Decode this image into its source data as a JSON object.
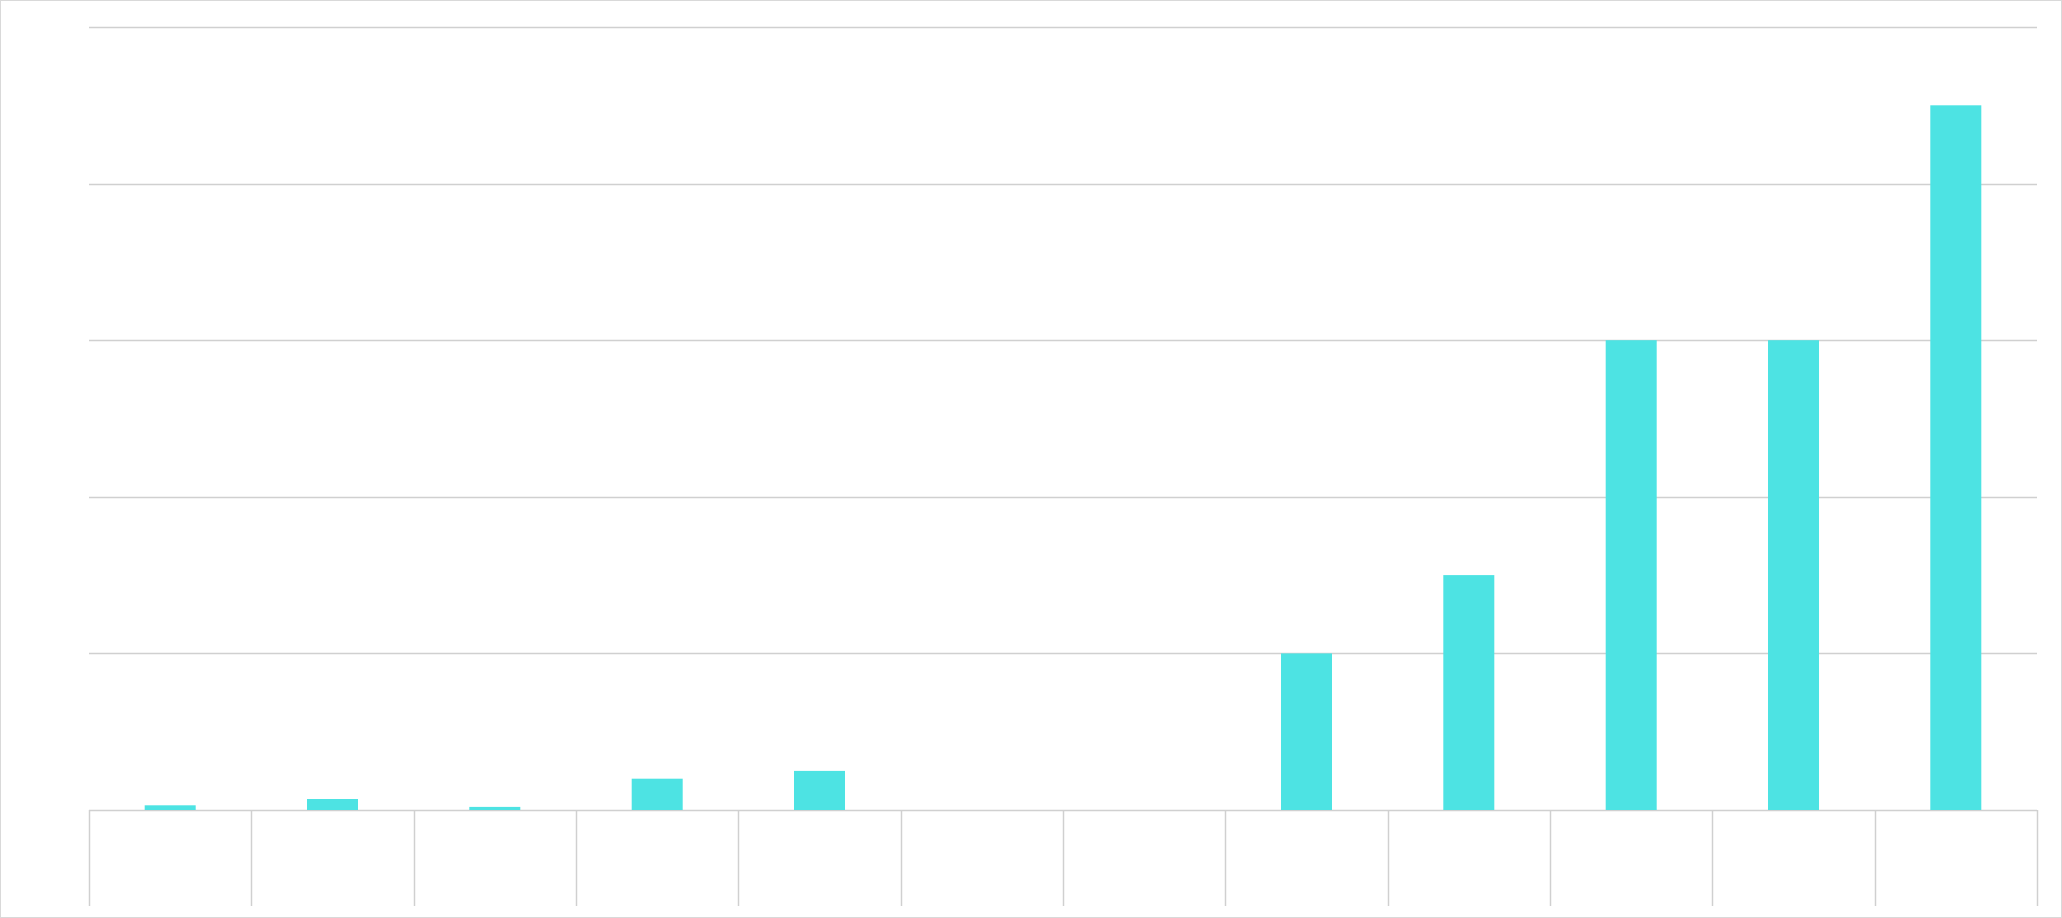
{
  "chart_data": {
    "type": "bar",
    "categories": [
      "",
      "",
      "",
      "",
      "",
      "",
      "",
      "",
      "",
      "",
      "",
      ""
    ],
    "values": [
      0.3,
      0.7,
      0.2,
      2.0,
      2.5,
      0,
      0,
      10,
      15,
      30,
      30,
      45
    ],
    "ylim": [
      0,
      50
    ],
    "y_gridlines": [
      0,
      10,
      20,
      30,
      40,
      50
    ],
    "grid": true,
    "legend": "none",
    "colors": {
      "bar": "#4de3e3",
      "grid": "#d0d0d0",
      "frame": "#d9d9d9",
      "background": "#ffffff"
    }
  }
}
